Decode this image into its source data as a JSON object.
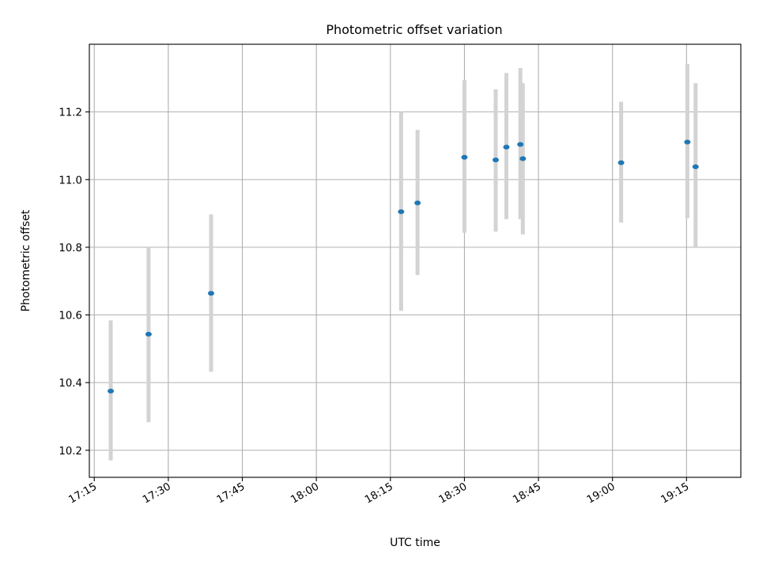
{
  "chart_data": {
    "type": "scatter",
    "title": "Photometric offset variation",
    "xlabel": "UTC time",
    "ylabel": "Photometric offset",
    "x_is_time": true,
    "xlim": [
      "17:14",
      "19:26"
    ],
    "ylim": [
      10.12,
      11.4
    ],
    "x_ticks": [
      "17:15",
      "17:30",
      "17:45",
      "18:00",
      "18:15",
      "18:30",
      "18:45",
      "19:00",
      "19:15"
    ],
    "y_ticks": [
      10.2,
      10.4,
      10.6,
      10.8,
      11.0,
      11.2
    ],
    "y_tick_labels": [
      "10.2",
      "10.4",
      "10.6",
      "10.8",
      "11.0",
      "11.2"
    ],
    "grid": true,
    "point_color": "#1f77b4",
    "errorbar_color": "#d3d3d3",
    "series": [
      {
        "x": [
          "17:18:20",
          "17:26:00",
          "17:38:40",
          "18:17:10",
          "18:20:30",
          "18:30:00",
          "18:36:20",
          "18:38:30",
          "18:41:20",
          "18:41:50",
          "19:01:45",
          "19:15:10",
          "19:16:50"
        ],
        "y": [
          10.375,
          10.543,
          10.664,
          10.905,
          10.931,
          11.066,
          11.058,
          11.096,
          11.104,
          11.062,
          11.05,
          11.111,
          11.038
        ],
        "yerr_low": [
          10.17,
          10.283,
          10.432,
          10.612,
          10.718,
          10.843,
          10.846,
          10.883,
          10.883,
          10.838,
          10.873,
          10.886,
          10.798
        ],
        "yerr_high": [
          10.584,
          10.8,
          10.897,
          11.2,
          11.147,
          11.294,
          11.267,
          11.315,
          11.33,
          11.285,
          11.23,
          11.342,
          11.285
        ]
      }
    ]
  }
}
